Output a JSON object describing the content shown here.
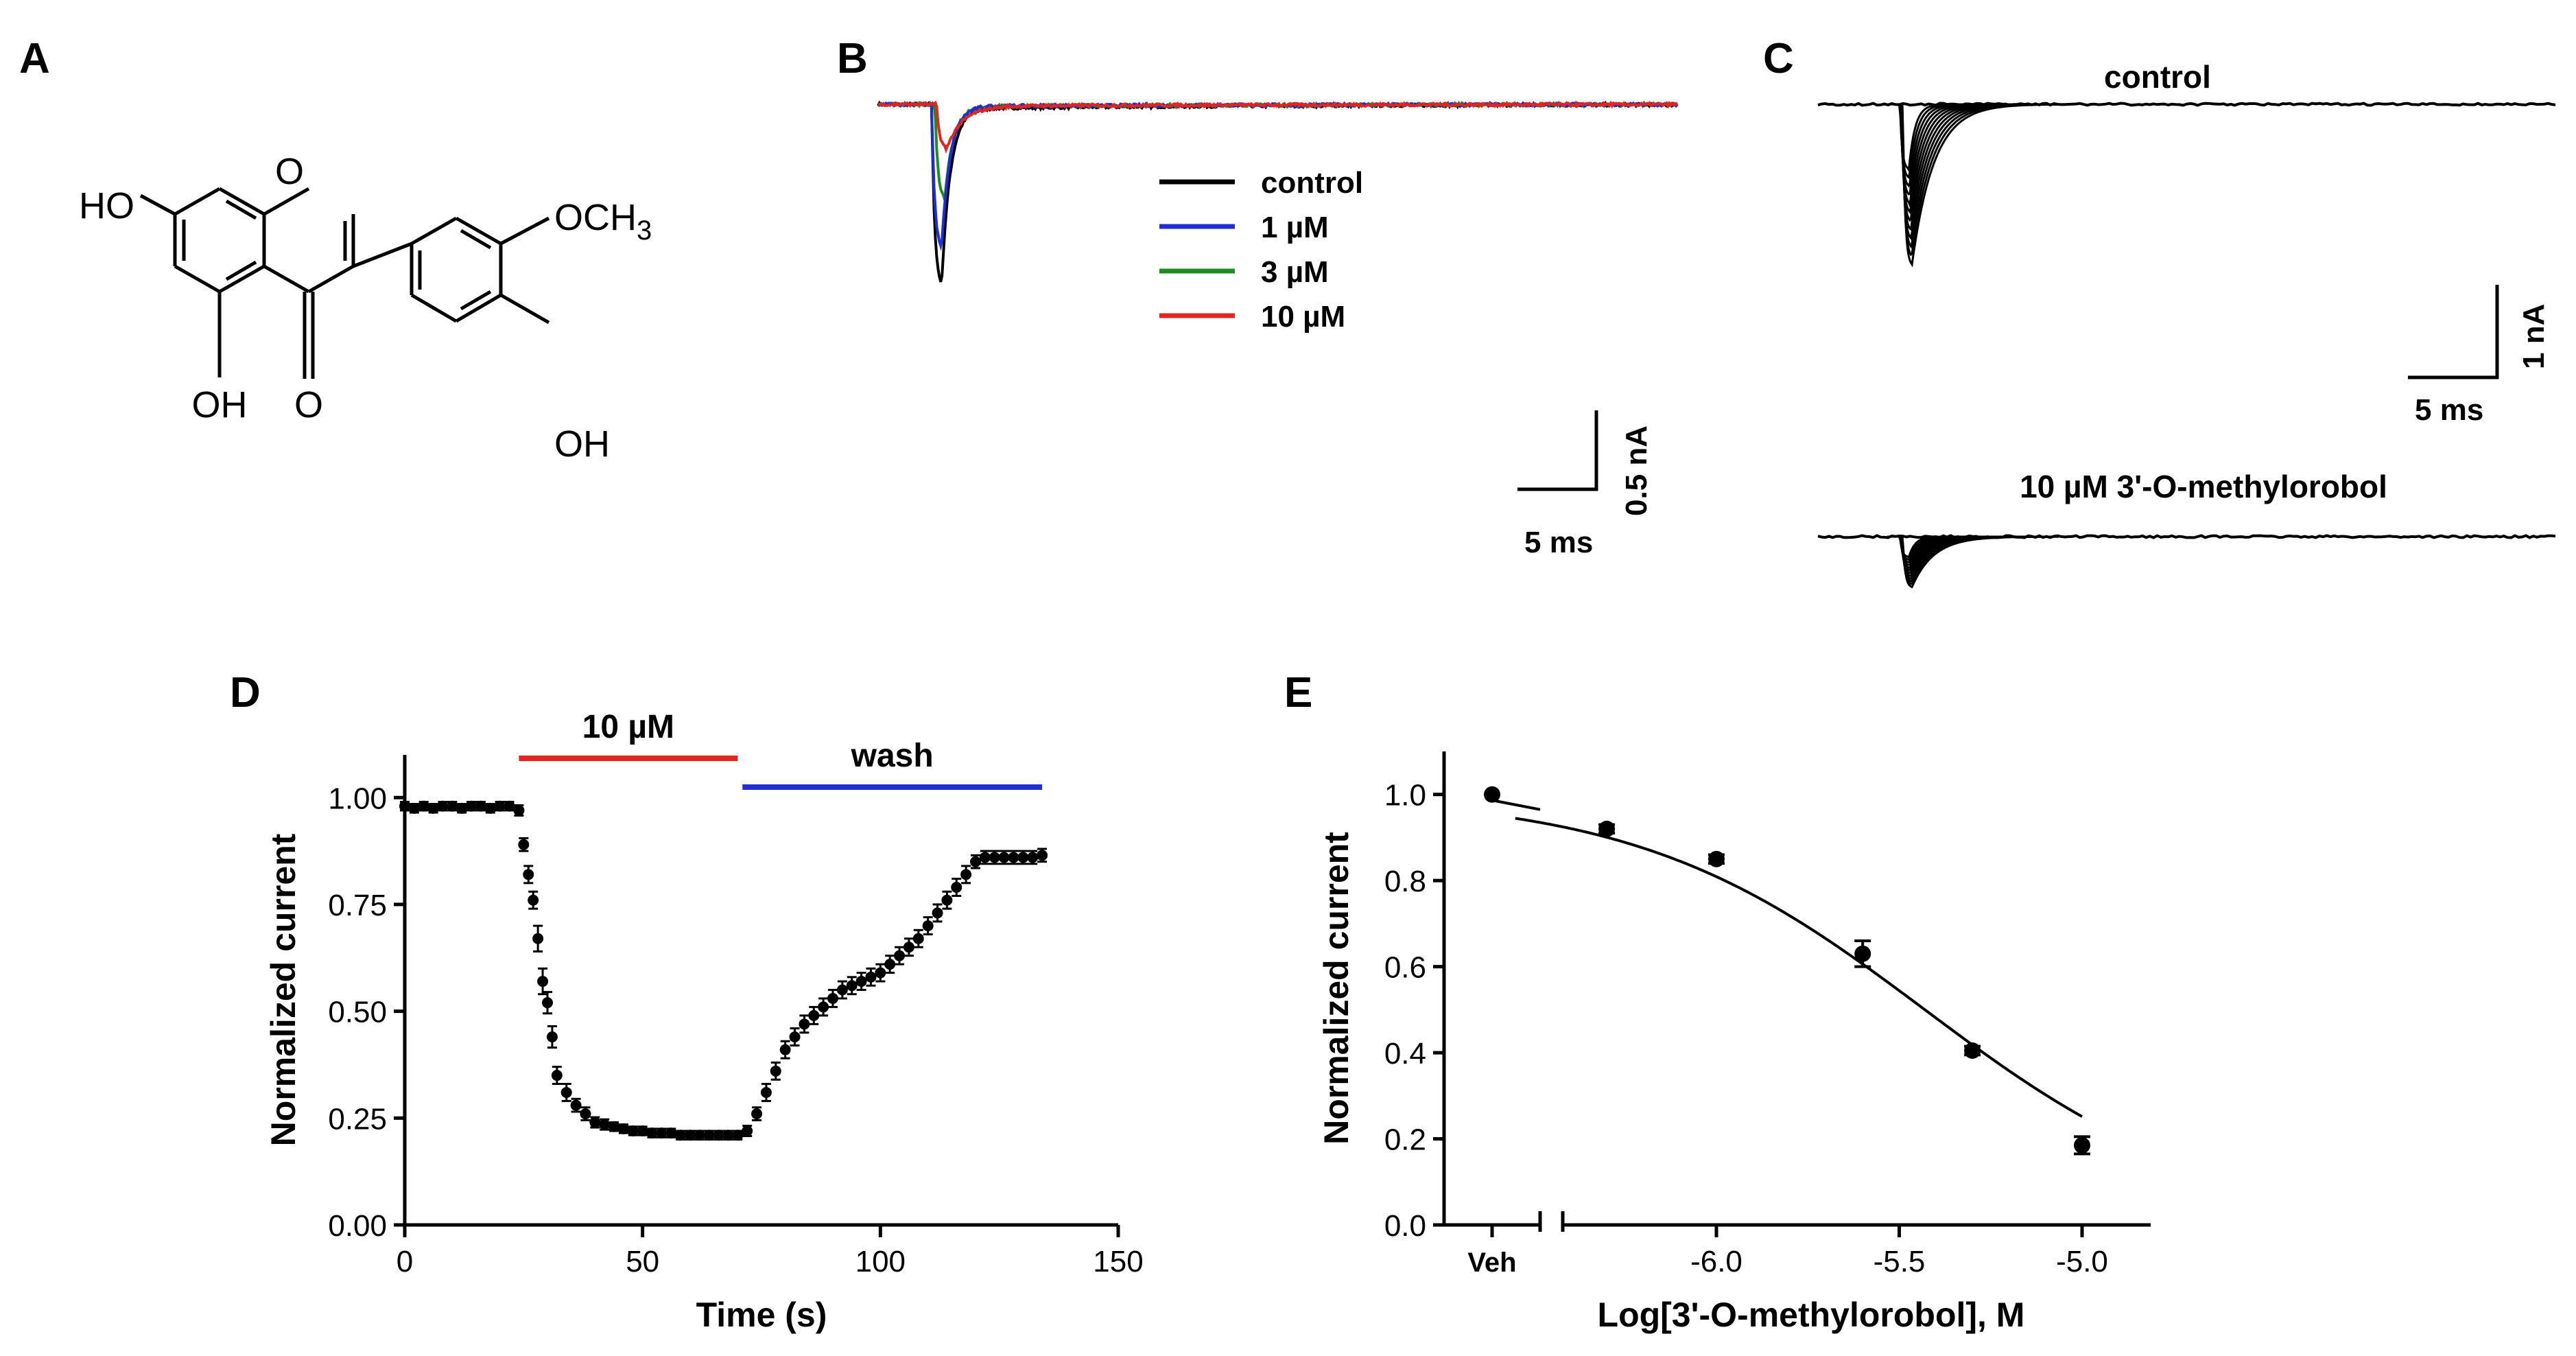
{
  "panels": {
    "a": {
      "letter": "A",
      "molecule": {
        "ho_top": "HO",
        "ring_o": "O",
        "och3": "OCH",
        "och3_sub": "3",
        "oh_bottom": "OH",
        "keto_o": "O",
        "oh_right": "OH"
      }
    },
    "b": {
      "letter": "B",
      "legend": [
        "control",
        "1 µM",
        "3 µM",
        "10 µM"
      ],
      "colors": [
        "#000000",
        "#1f2fd6",
        "#1e8c1e",
        "#e5231f"
      ],
      "scale_y": "0.5 nA",
      "scale_x": "5 ms"
    },
    "c": {
      "letter": "C",
      "title_top": "control",
      "title_bottom": "10 µM 3'-O-methylorobol",
      "scale_y": "1 nA",
      "scale_x": "5 ms"
    },
    "d": {
      "letter": "D",
      "bar_drug": "10 µM",
      "bar_wash": "wash",
      "bar_drug_color": "#e5231f",
      "bar_wash_color": "#1f2fd6"
    },
    "e": {
      "letter": "E",
      "veh_label": "Veh"
    }
  },
  "chart_data": [
    {
      "panel": "B",
      "type": "line",
      "title": "",
      "xlabel": "",
      "ylabel": "",
      "x_unit": "ms",
      "y_unit": "nA",
      "series": [
        {
          "name": "control",
          "color": "#000000",
          "baseline": 0,
          "peak": -1.17,
          "peak_time": 4.0
        },
        {
          "name": "1 µM",
          "color": "#1f2fd6",
          "baseline": 0,
          "peak": -0.93,
          "peak_time": 4.0
        },
        {
          "name": "3 µM",
          "color": "#1e8c1e",
          "baseline": 0,
          "peak": -0.61,
          "peak_time": 4.2
        },
        {
          "name": "10 µM",
          "color": "#e5231f",
          "baseline": 0,
          "peak": -0.28,
          "peak_time": 4.3
        }
      ],
      "scale_bar": {
        "x": "5 ms",
        "y": "0.5 nA"
      }
    },
    {
      "panel": "C",
      "type": "line",
      "title": "",
      "x_unit": "ms",
      "y_unit": "nA",
      "series": [
        {
          "name": "control",
          "baseline": 0,
          "peak": -1.75,
          "sweeps": 12
        },
        {
          "name": "10 µM 3'-O-methylorobol",
          "baseline": 0,
          "peak": -0.55,
          "sweeps": 12
        }
      ],
      "scale_bar": {
        "x": "5 ms",
        "y": "1 nA"
      }
    },
    {
      "panel": "D",
      "type": "scatter",
      "title": "",
      "xlabel": "Time (s)",
      "ylabel": "Normalized current",
      "xlim": [
        0,
        150
      ],
      "ylim": [
        0,
        1.1
      ],
      "x_ticks": [
        0,
        50,
        100,
        150
      ],
      "y_ticks": [
        0.0,
        0.25,
        0.5,
        0.75,
        1.0
      ],
      "x_tick_labels": [
        "0",
        "50",
        "100",
        "150"
      ],
      "y_tick_labels": [
        "0.00",
        "0.25",
        "0.50",
        "0.75",
        "1.00"
      ],
      "bars": [
        {
          "label": "10 µM",
          "start": 24,
          "end": 70,
          "color": "#e5231f"
        },
        {
          "label": "wash",
          "start": 71,
          "end": 134,
          "color": "#1f2fd6"
        }
      ],
      "points": [
        [
          0,
          0.98
        ],
        [
          2,
          0.975
        ],
        [
          4,
          0.98
        ],
        [
          6,
          0.975
        ],
        [
          8,
          0.98
        ],
        [
          10,
          0.98
        ],
        [
          12,
          0.975
        ],
        [
          14,
          0.98
        ],
        [
          16,
          0.98
        ],
        [
          18,
          0.975
        ],
        [
          20,
          0.98
        ],
        [
          22,
          0.98
        ],
        [
          24,
          0.97
        ],
        [
          25,
          0.89
        ],
        [
          26,
          0.82
        ],
        [
          27,
          0.76
        ],
        [
          28,
          0.67
        ],
        [
          29,
          0.57
        ],
        [
          30,
          0.52
        ],
        [
          31,
          0.44
        ],
        [
          32,
          0.35
        ],
        [
          34,
          0.31
        ],
        [
          36,
          0.28
        ],
        [
          38,
          0.26
        ],
        [
          40,
          0.24
        ],
        [
          42,
          0.235
        ],
        [
          44,
          0.23
        ],
        [
          46,
          0.225
        ],
        [
          48,
          0.22
        ],
        [
          50,
          0.22
        ],
        [
          52,
          0.215
        ],
        [
          54,
          0.215
        ],
        [
          56,
          0.215
        ],
        [
          58,
          0.21
        ],
        [
          60,
          0.21
        ],
        [
          62,
          0.21
        ],
        [
          64,
          0.21
        ],
        [
          66,
          0.21
        ],
        [
          68,
          0.21
        ],
        [
          70,
          0.21
        ],
        [
          72,
          0.22
        ],
        [
          74,
          0.26
        ],
        [
          76,
          0.31
        ],
        [
          78,
          0.36
        ],
        [
          80,
          0.41
        ],
        [
          82,
          0.44
        ],
        [
          84,
          0.47
        ],
        [
          86,
          0.49
        ],
        [
          88,
          0.51
        ],
        [
          90,
          0.53
        ],
        [
          92,
          0.55
        ],
        [
          94,
          0.56
        ],
        [
          96,
          0.57
        ],
        [
          98,
          0.58
        ],
        [
          100,
          0.59
        ],
        [
          102,
          0.61
        ],
        [
          104,
          0.63
        ],
        [
          106,
          0.65
        ],
        [
          108,
          0.67
        ],
        [
          110,
          0.7
        ],
        [
          112,
          0.73
        ],
        [
          114,
          0.76
        ],
        [
          116,
          0.79
        ],
        [
          118,
          0.82
        ],
        [
          120,
          0.85
        ],
        [
          122,
          0.86
        ],
        [
          124,
          0.86
        ],
        [
          126,
          0.86
        ],
        [
          128,
          0.86
        ],
        [
          130,
          0.86
        ],
        [
          132,
          0.86
        ],
        [
          134,
          0.865
        ]
      ],
      "error": [
        0.01,
        0.01,
        0.01,
        0.01,
        0.01,
        0.01,
        0.01,
        0.01,
        0.01,
        0.01,
        0.01,
        0.01,
        0.012,
        0.015,
        0.02,
        0.02,
        0.03,
        0.03,
        0.025,
        0.025,
        0.02,
        0.02,
        0.015,
        0.015,
        0.012,
        0.012,
        0.01,
        0.01,
        0.01,
        0.01,
        0.01,
        0.01,
        0.01,
        0.01,
        0.01,
        0.01,
        0.01,
        0.01,
        0.01,
        0.01,
        0.012,
        0.015,
        0.02,
        0.02,
        0.02,
        0.02,
        0.02,
        0.02,
        0.02,
        0.02,
        0.02,
        0.02,
        0.02,
        0.02,
        0.02,
        0.02,
        0.02,
        0.02,
        0.02,
        0.02,
        0.02,
        0.02,
        0.02,
        0.02,
        0.015,
        0.015,
        0.015,
        0.015,
        0.015,
        0.015,
        0.015,
        0.015
      ]
    },
    {
      "panel": "E",
      "type": "scatter",
      "title": "",
      "xlabel": "Log[3'-O-methylorobol], M",
      "ylabel": "Normalized current",
      "xlim": [
        -6.5,
        -4.85
      ],
      "ylim": [
        0,
        1.1
      ],
      "x_ticks": [
        -6.0,
        -5.5,
        -5.0
      ],
      "y_ticks": [
        0.0,
        0.2,
        0.4,
        0.6,
        0.8,
        1.0
      ],
      "x_tick_labels": [
        "-6.0",
        "-5.5",
        "-5.0"
      ],
      "y_tick_labels": [
        "0.0",
        "0.2",
        "0.4",
        "0.6",
        "0.8",
        "1.0"
      ],
      "vehicle": {
        "label": "Veh",
        "y": 1.0,
        "err": 0.01
      },
      "points": [
        {
          "x": -6.3,
          "y": 0.92,
          "err": 0.01
        },
        {
          "x": -6.0,
          "y": 0.85,
          "err": 0.01
        },
        {
          "x": -5.6,
          "y": 0.63,
          "err": 0.03
        },
        {
          "x": -5.3,
          "y": 0.405,
          "err": 0.01
        },
        {
          "x": -5.0,
          "y": 0.185,
          "err": 0.02
        }
      ],
      "fit": {
        "model": "hill",
        "top": 1.0,
        "bottom": 0.0,
        "log_ic50": -5.43,
        "hill": 1.1
      }
    }
  ]
}
